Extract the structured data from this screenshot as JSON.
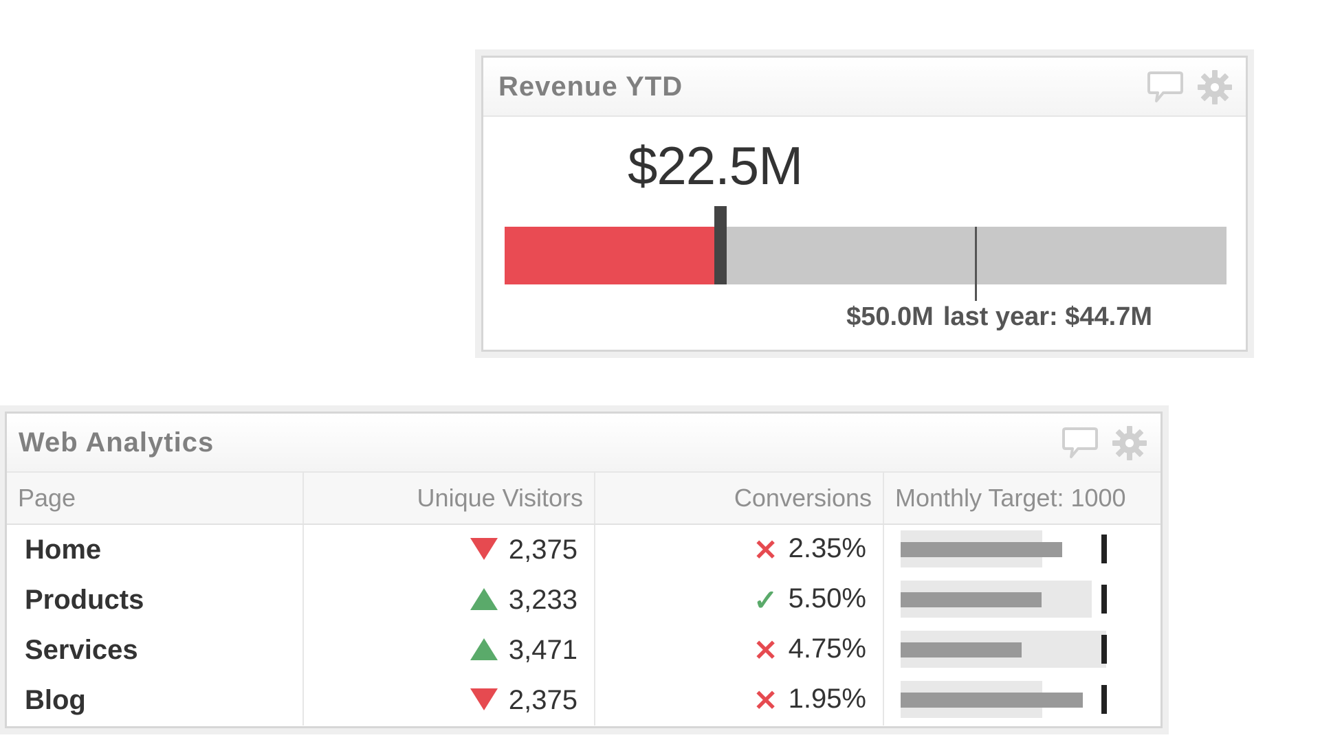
{
  "revenue_widget": {
    "title": "Revenue YTD",
    "value": "$22.5M",
    "bullet": {
      "value": 22.5,
      "max": 50.0,
      "last_year": 44.7,
      "bar_color": "#e94b53",
      "track_color": "#c8c8c8"
    },
    "scale_label": "$50.0M",
    "last_year_label": "last year: $44.7M",
    "icons": [
      "comment-icon",
      "gear-icon"
    ]
  },
  "web_widget": {
    "title": "Web Analytics",
    "icons": [
      "comment-icon",
      "gear-icon"
    ],
    "columns": {
      "page": "Page",
      "visitors": "Unique Visitors",
      "conversions": "Conversions",
      "target": "Monthly Target: 1000"
    },
    "target_value": 1000,
    "rows": [
      {
        "page": "Home",
        "trend": "down",
        "visitors": "2,375",
        "status": "fail",
        "status_glyph": "✕",
        "conversions": "2.35%",
        "bar": 0.87,
        "range": 0.71
      },
      {
        "page": "Products",
        "trend": "up",
        "visitors": "3,233",
        "status": "pass",
        "status_glyph": "✓",
        "conversions": "5.50%",
        "bar": 0.76,
        "range": 0.96
      },
      {
        "page": "Services",
        "trend": "up",
        "visitors": "3,471",
        "status": "fail",
        "status_glyph": "✕",
        "conversions": "4.75%",
        "bar": 0.65,
        "range": 1.03
      },
      {
        "page": "Blog",
        "trend": "down",
        "visitors": "2,375",
        "status": "fail",
        "status_glyph": "✕",
        "conversions": "1.95%",
        "bar": 0.98,
        "range": 0.71
      }
    ],
    "colors": {
      "down": "#e64a50",
      "up": "#5aaa6a",
      "fail": "#e64a50",
      "pass": "#5aaa6a"
    }
  }
}
